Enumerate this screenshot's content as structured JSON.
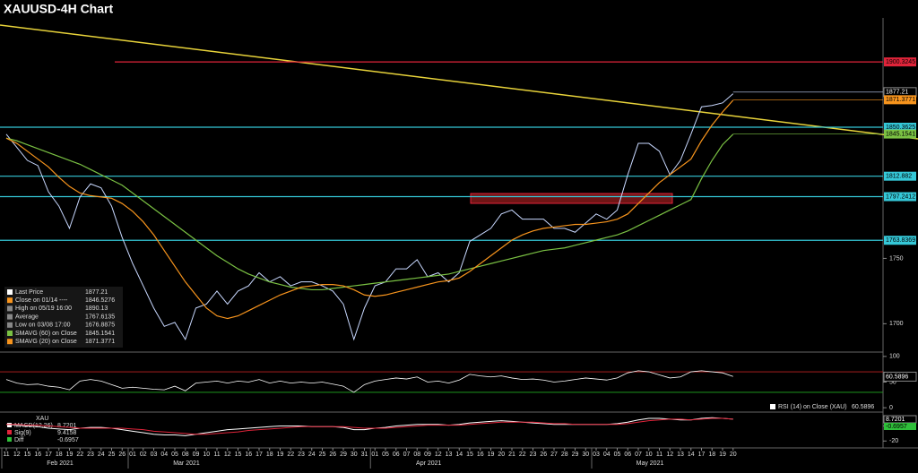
{
  "chart_data": {
    "type": "line",
    "title": "XAUUSD-4H Chart",
    "categories": [
      "11",
      "12",
      "15",
      "16",
      "17",
      "18",
      "19",
      "22",
      "23",
      "24",
      "25",
      "26",
      "01",
      "02",
      "03",
      "04",
      "05",
      "08",
      "09",
      "10",
      "11",
      "12",
      "15",
      "16",
      "17",
      "18",
      "19",
      "22",
      "23",
      "24",
      "25",
      "26",
      "29",
      "30",
      "31",
      "01",
      "05",
      "06",
      "07",
      "08",
      "09",
      "12",
      "13",
      "14",
      "15",
      "16",
      "19",
      "20",
      "21",
      "22",
      "23",
      "26",
      "27",
      "28",
      "29",
      "30",
      "03",
      "04",
      "05",
      "06",
      "07",
      "10",
      "11",
      "12",
      "13",
      "14",
      "17",
      "18",
      "19",
      "20"
    ],
    "months": [
      "Feb 2021",
      "Mar 2021",
      "Apr 2021",
      "May 2021"
    ],
    "ylim": [
      1679,
      1934
    ],
    "yticks": [
      1700,
      1750
    ],
    "series": [
      {
        "name": "Last Price",
        "color": "#c8d8ff",
        "last": 1877.21,
        "values": [
          1845,
          1835,
          1825,
          1821,
          1801,
          1790,
          1773,
          1797,
          1807,
          1804,
          1790,
          1766,
          1746,
          1729,
          1712,
          1698,
          1701,
          1688,
          1712,
          1715,
          1725,
          1715,
          1725,
          1729,
          1739,
          1732,
          1736,
          1729,
          1732,
          1732,
          1729,
          1725,
          1715,
          1688,
          1712,
          1729,
          1732,
          1742,
          1742,
          1749,
          1736,
          1739,
          1732,
          1739,
          1763,
          1768,
          1773,
          1784,
          1787,
          1780,
          1780,
          1780,
          1773,
          1773,
          1770,
          1777,
          1784,
          1780,
          1787,
          1814,
          1838,
          1838,
          1832,
          1814,
          1825,
          1845,
          1866,
          1867,
          1869,
          1876
        ]
      },
      {
        "name": "SMAVG (60)  on Close",
        "color": "#7ac143",
        "last": 1845.1541,
        "values": [
          1842,
          1840,
          1837,
          1834,
          1831,
          1828,
          1825,
          1822,
          1818,
          1814,
          1810,
          1806,
          1800,
          1794,
          1788,
          1782,
          1776,
          1770,
          1764,
          1758,
          1752,
          1747,
          1742,
          1738,
          1735,
          1732,
          1730,
          1728,
          1727,
          1726,
          1726,
          1727,
          1728,
          1729,
          1730,
          1731,
          1732,
          1733,
          1734,
          1735,
          1736,
          1737,
          1738,
          1740,
          1742,
          1744,
          1746,
          1748,
          1750,
          1752,
          1754,
          1756,
          1757,
          1758,
          1760,
          1762,
          1764,
          1766,
          1768,
          1771,
          1775,
          1779,
          1783,
          1787,
          1791,
          1795,
          1811,
          1825,
          1837,
          1845
        ]
      },
      {
        "name": "SMAVG (20)  on Close",
        "color": "#f7941d",
        "last": 1871.3771,
        "values": [
          1842,
          1838,
          1832,
          1826,
          1820,
          1812,
          1805,
          1800,
          1798,
          1797,
          1796,
          1792,
          1786,
          1778,
          1768,
          1756,
          1744,
          1732,
          1722,
          1712,
          1706,
          1704,
          1706,
          1710,
          1714,
          1718,
          1722,
          1725,
          1728,
          1729,
          1730,
          1730,
          1729,
          1726,
          1722,
          1721,
          1722,
          1724,
          1726,
          1728,
          1730,
          1732,
          1733,
          1735,
          1740,
          1746,
          1752,
          1758,
          1764,
          1768,
          1771,
          1773,
          1774,
          1775,
          1776,
          1776,
          1777,
          1778,
          1780,
          1784,
          1792,
          1800,
          1808,
          1814,
          1820,
          1826,
          1840,
          1852,
          1862,
          1871
        ]
      }
    ],
    "stats": [
      {
        "label": "Close on 01/14 ----",
        "value": 1846.5276,
        "color": "#f7941d"
      },
      {
        "label": "High on 05/19 16:00",
        "value": 1890.13,
        "color": "#888888"
      },
      {
        "label": "Average",
        "value": 1767.6135,
        "color": "#888888"
      },
      {
        "label": "Low on 03/08 17:00",
        "value": 1676.8875,
        "color": "#888888"
      }
    ],
    "levels": [
      {
        "value": 1900.3245,
        "color": "#e0243a"
      },
      {
        "value": 1850.3625,
        "color": "#35c8d8"
      },
      {
        "value": 1812.882,
        "color": "#35c8d8"
      },
      {
        "value": 1797.2412,
        "color": "#35c8d8"
      },
      {
        "value": 1763.8369,
        "color": "#35c8d8"
      }
    ],
    "rsi": {
      "label": "RSI (14)  on Close (XAU)",
      "value": 60.5896,
      "color": "#ffffff",
      "ylim": [
        -5,
        105
      ],
      "yticks": [
        0,
        50,
        100
      ],
      "upper": 70,
      "lower": 30,
      "values": [
        55,
        48,
        45,
        46,
        42,
        40,
        35,
        52,
        55,
        52,
        45,
        38,
        40,
        38,
        36,
        35,
        42,
        33,
        48,
        50,
        52,
        48,
        52,
        50,
        55,
        48,
        52,
        48,
        50,
        48,
        50,
        46,
        42,
        30,
        45,
        52,
        55,
        58,
        56,
        60,
        50,
        52,
        48,
        54,
        65,
        62,
        60,
        62,
        58,
        55,
        56,
        54,
        50,
        52,
        55,
        58,
        56,
        54,
        58,
        68,
        72,
        70,
        64,
        58,
        60,
        70,
        72,
        70,
        68,
        61
      ]
    },
    "macd": {
      "title": "XAU",
      "ylim": [
        -28,
        16
      ],
      "yticks": [
        0,
        -20
      ],
      "series": [
        {
          "name": "MACD(12,26)",
          "value": 8.7201,
          "color": "#ffffff",
          "values": [
            2,
            1,
            0,
            -1,
            -3,
            -4,
            -5,
            -3,
            -2,
            -2,
            -3,
            -5,
            -7,
            -9,
            -11,
            -12,
            -12,
            -13,
            -11,
            -9,
            -7,
            -5,
            -4,
            -3,
            -2,
            -1,
            0,
            0,
            0,
            -1,
            -1,
            -1,
            -2,
            -5,
            -5,
            -3,
            -2,
            0,
            1,
            2,
            2,
            2,
            1,
            2,
            4,
            5,
            6,
            7,
            6,
            5,
            4,
            3,
            2,
            2,
            2,
            2,
            2,
            2,
            3,
            5,
            8,
            10,
            10,
            9,
            8,
            8,
            10,
            11,
            10,
            9
          ]
        },
        {
          "name": "Sig(9)",
          "value": 9.4158,
          "color": "#e0243a",
          "values": [
            2,
            2,
            1,
            1,
            0,
            -1,
            -2,
            -3,
            -3,
            -3,
            -3,
            -3,
            -4,
            -5,
            -7,
            -8,
            -9,
            -10,
            -11,
            -11,
            -10,
            -9,
            -8,
            -6,
            -5,
            -4,
            -3,
            -2,
            -1,
            -1,
            -1,
            -1,
            -1,
            -2,
            -3,
            -3,
            -3,
            -2,
            -1,
            0,
            1,
            1,
            1,
            1,
            2,
            3,
            4,
            5,
            5,
            5,
            5,
            4,
            3,
            3,
            2,
            2,
            2,
            2,
            2,
            3,
            5,
            7,
            8,
            9,
            9,
            8,
            9,
            10,
            10,
            9
          ]
        },
        {
          "name": "Diff",
          "value": -0.6957,
          "color": "#2fbf3a"
        }
      ]
    }
  }
}
